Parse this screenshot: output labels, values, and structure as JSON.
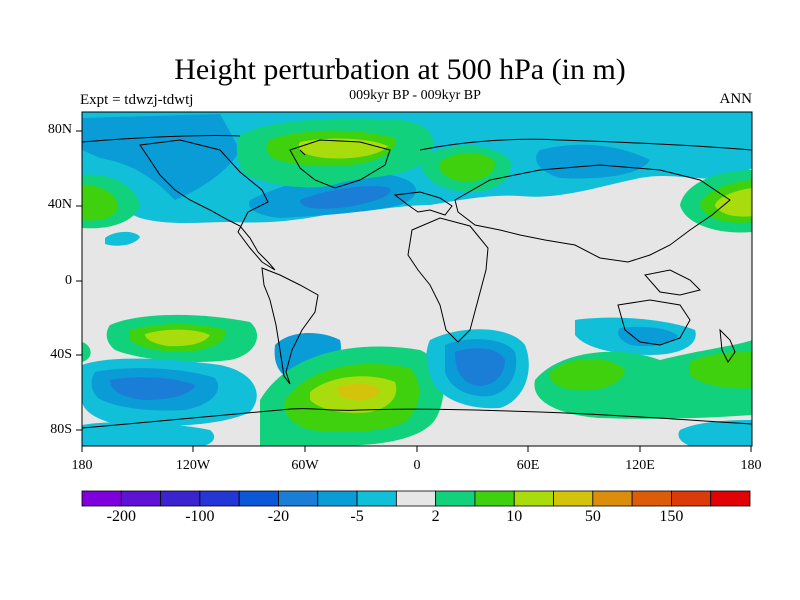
{
  "title": "Height perturbation at 500 hPa (in m)",
  "subtitle": "009kyr BP - 009kyr BP",
  "left_label": "Expt = tdwzj-tdwtj",
  "right_label": "ANN",
  "y_ticks": [
    "80N",
    "40N",
    "0",
    "40S",
    "80S"
  ],
  "x_ticks": [
    "180",
    "120W",
    "60W",
    "0",
    "60E",
    "120E",
    "180"
  ],
  "colorbar": {
    "labels": [
      "-200",
      "-100",
      "-20",
      "-5",
      "2",
      "10",
      "50",
      "150"
    ],
    "colors": [
      "#7f00dc",
      "#5e12d6",
      "#3b23d0",
      "#2536d6",
      "#0a58d8",
      "#1a7ed7",
      "#0a9cd6",
      "#12bfd8",
      "#e6e6e6",
      "#12d17c",
      "#3fd10d",
      "#a9dc0c",
      "#d3c40b",
      "#dc8d09",
      "#dc5c07",
      "#dc3a08",
      "#e00204"
    ]
  }
}
